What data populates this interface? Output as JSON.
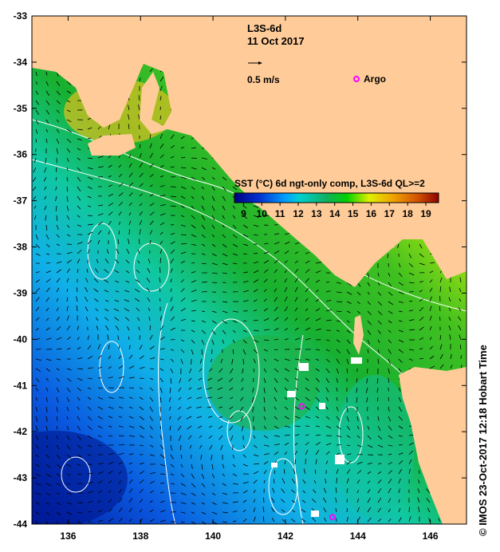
{
  "map": {
    "title": "L3S-6d",
    "date": "11 Oct 2017",
    "vector_scale_label": "0.5 m/s",
    "argo_label": "Argo",
    "lon_range": [
      135,
      147
    ],
    "lat_range": [
      -44,
      -33
    ],
    "lon_ticks": [
      "136",
      "138",
      "140",
      "142",
      "144",
      "146"
    ],
    "lat_ticks": [
      "-33",
      "-34",
      "-35",
      "-36",
      "-37",
      "-38",
      "-39",
      "-40",
      "-41",
      "-42",
      "-43",
      "-44"
    ],
    "argo_floats": [
      {
        "lon": 142.45,
        "lat": -41.45
      },
      {
        "lon": 143.3,
        "lat": -43.85
      }
    ],
    "land_color": "#FFCC99",
    "argo_color": "#FF00FF"
  },
  "colorbar": {
    "title": "SST (°C) 6d ngt-only comp, L3S-6d QL>=2",
    "ticks": [
      "9",
      "10",
      "11",
      "12",
      "13",
      "14",
      "15",
      "16",
      "17",
      "18",
      "19"
    ],
    "range": [
      8.5,
      19.7
    ]
  },
  "credit": "© IMOS 23-Oct-2017 12:18 Hobart Time"
}
